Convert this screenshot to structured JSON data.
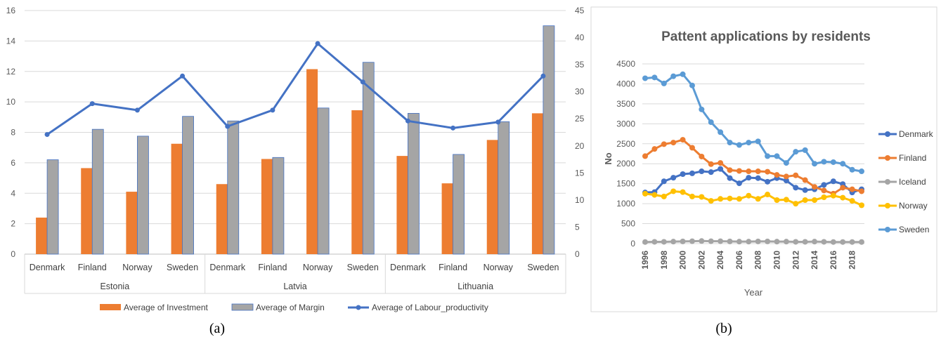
{
  "panels": {
    "a_label": "(a)",
    "b_label": "(b)"
  },
  "chart_data": [
    {
      "type": "bar",
      "title": "",
      "groups": [
        {
          "name": "Estonia",
          "categories": [
            "Denmark",
            "Finland",
            "Norway",
            "Sweden"
          ]
        },
        {
          "name": "Latvia",
          "categories": [
            "Denmark",
            "Finland",
            "Norway",
            "Sweden"
          ]
        },
        {
          "name": "Lithuania",
          "categories": [
            "Denmark",
            "Finland",
            "Norway",
            "Sweden"
          ]
        }
      ],
      "series": [
        {
          "name": "Average of Investment",
          "type": "bar",
          "axis": "left",
          "color": "#ED7D31",
          "values": [
            2.4,
            5.65,
            4.1,
            7.25,
            4.6,
            6.25,
            12.15,
            9.45,
            6.45,
            4.65,
            7.5,
            9.25
          ]
        },
        {
          "name": "Average of Margin",
          "type": "bar",
          "axis": "left",
          "color": "#A5A5A5",
          "values": [
            6.2,
            8.2,
            7.75,
            9.05,
            8.75,
            6.35,
            9.6,
            12.6,
            9.25,
            6.55,
            8.7,
            15.0
          ]
        },
        {
          "name": "Average of Labour_productivity",
          "type": "line",
          "axis": "right",
          "color": "#4472C4",
          "values": [
            22.1,
            27.8,
            26.6,
            32.9,
            23.6,
            26.6,
            38.9,
            31.8,
            24.6,
            23.3,
            24.4,
            32.9
          ]
        }
      ],
      "y_left": {
        "min": 0,
        "max": 16,
        "ticks": [
          0,
          2,
          4,
          6,
          8,
          10,
          12,
          14,
          16
        ]
      },
      "y_right": {
        "min": 0,
        "max": 45,
        "ticks": [
          0,
          5,
          10,
          15,
          20,
          25,
          30,
          35,
          40,
          45
        ]
      },
      "legend_position": "bottom",
      "grid": true
    },
    {
      "type": "line",
      "title": "Pattent applications by residents",
      "xlabel": "Year",
      "ylabel": "No",
      "x": [
        1996,
        1997,
        1998,
        1999,
        2000,
        2001,
        2002,
        2003,
        2004,
        2005,
        2006,
        2007,
        2008,
        2009,
        2010,
        2011,
        2012,
        2013,
        2014,
        2015,
        2016,
        2017,
        2018,
        2019
      ],
      "x_tick_labels": [
        "1996",
        "1998",
        "2000",
        "2002",
        "2004",
        "2006",
        "2008",
        "2010",
        "2012",
        "2014",
        "2016",
        "2018"
      ],
      "ylim": [
        0,
        4500
      ],
      "y_ticks": [
        0,
        500,
        1000,
        1500,
        2000,
        2500,
        3000,
        3500,
        4000,
        4500
      ],
      "legend_position": "right",
      "grid": true,
      "series": [
        {
          "name": "Denmark",
          "color": "#4472C4",
          "values": [
            1280,
            1290,
            1560,
            1650,
            1740,
            1760,
            1810,
            1790,
            1870,
            1640,
            1510,
            1650,
            1640,
            1550,
            1640,
            1580,
            1400,
            1340,
            1360,
            1470,
            1560,
            1490,
            1280,
            1360
          ]
        },
        {
          "name": "Finland",
          "color": "#ED7D31",
          "values": [
            2190,
            2370,
            2490,
            2530,
            2600,
            2400,
            2180,
            1990,
            2020,
            1840,
            1820,
            1810,
            1810,
            1800,
            1720,
            1680,
            1710,
            1590,
            1420,
            1330,
            1250,
            1400,
            1360,
            1310
          ]
        },
        {
          "name": "Iceland",
          "color": "#A5A5A5",
          "values": [
            40,
            45,
            45,
            50,
            55,
            60,
            65,
            60,
            60,
            55,
            50,
            50,
            55,
            55,
            50,
            50,
            45,
            45,
            50,
            45,
            40,
            40,
            40,
            40
          ]
        },
        {
          "name": "Norway",
          "color": "#FFC000",
          "values": [
            1250,
            1220,
            1180,
            1310,
            1290,
            1180,
            1170,
            1070,
            1120,
            1130,
            1120,
            1200,
            1120,
            1230,
            1090,
            1100,
            1000,
            1090,
            1090,
            1160,
            1200,
            1150,
            1070,
            960
          ]
        },
        {
          "name": "Sweden",
          "color": "#5B9BD5",
          "values": [
            4140,
            4160,
            4010,
            4190,
            4240,
            3960,
            3360,
            3040,
            2790,
            2530,
            2470,
            2530,
            2560,
            2190,
            2190,
            2020,
            2300,
            2340,
            2000,
            2050,
            2040,
            2000,
            1850,
            1810
          ]
        }
      ]
    }
  ]
}
